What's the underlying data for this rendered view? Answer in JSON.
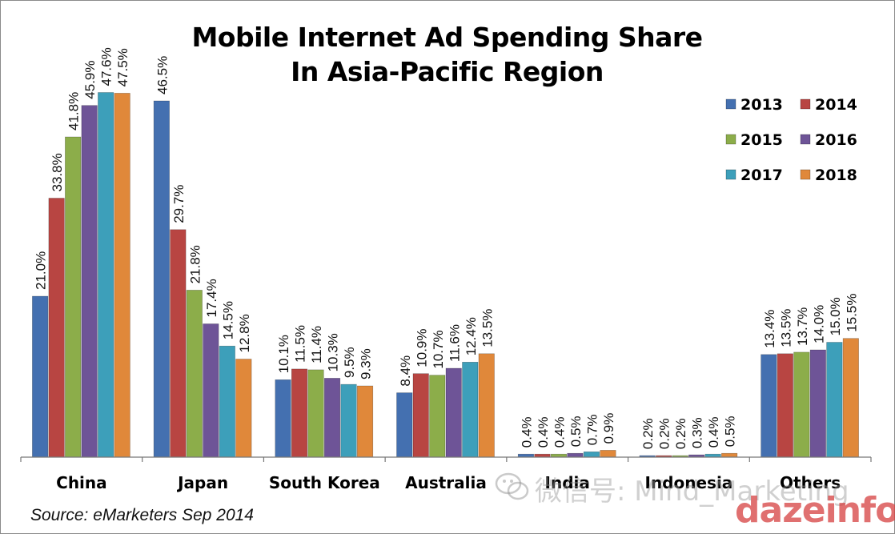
{
  "title": {
    "line1": "Mobile Internet Ad Spending Share",
    "line2": "In Asia-Pacific Region"
  },
  "source": "Source:  eMarketers Sep 2014",
  "watermark": {
    "text": "微信号: Mind_Marketing",
    "brand": "dazeinfo"
  },
  "chart_data": {
    "type": "bar",
    "title": "Mobile Internet Ad Spending Share In Asia-Pacific Region",
    "categories": [
      "China",
      "Japan",
      "South Korea",
      "Australia",
      "India",
      "Indonesia",
      "Others"
    ],
    "series": [
      {
        "name": "2013",
        "color": "#4470b0",
        "values": [
          21.0,
          46.5,
          10.1,
          8.4,
          0.4,
          0.2,
          13.4
        ]
      },
      {
        "name": "2014",
        "color": "#b84542",
        "values": [
          33.8,
          29.7,
          11.5,
          10.9,
          0.4,
          0.2,
          13.5
        ]
      },
      {
        "name": "2015",
        "color": "#8cad4a",
        "values": [
          41.8,
          21.8,
          11.4,
          10.7,
          0.4,
          0.2,
          13.7
        ]
      },
      {
        "name": "2016",
        "color": "#6e5497",
        "values": [
          45.9,
          17.4,
          10.3,
          11.6,
          0.5,
          0.3,
          14.0
        ]
      },
      {
        "name": "2017",
        "color": "#3d9fba",
        "values": [
          47.6,
          14.5,
          9.5,
          12.4,
          0.7,
          0.4,
          15.0
        ]
      },
      {
        "name": "2018",
        "color": "#e0883a",
        "values": [
          47.5,
          12.8,
          9.3,
          13.5,
          0.9,
          0.5,
          15.5
        ]
      }
    ],
    "value_suffix": "%",
    "ylim": [
      0,
      50
    ],
    "grid": false,
    "legend": "top-right",
    "xlabel": "",
    "ylabel": ""
  }
}
